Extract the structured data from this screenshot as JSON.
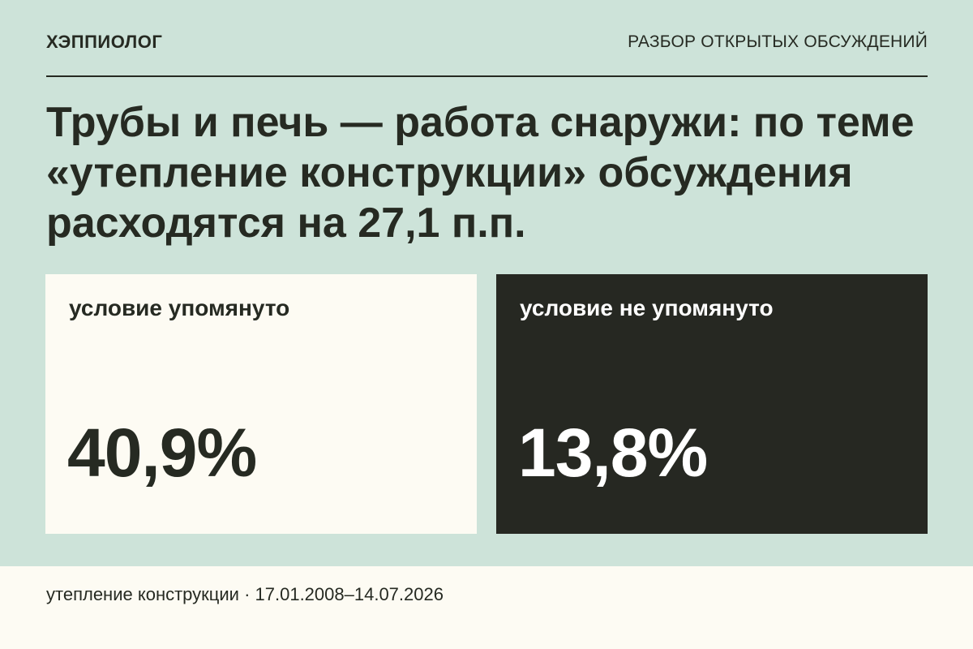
{
  "header": {
    "brand": "ХЭППИОЛОГ",
    "section": "РАЗБОР ОТКРЫТЫХ ОБСУЖДЕНИЙ"
  },
  "headline": "Трубы и печь — работа снаружи: по теме «утепление конструкции» обсуждения расходятся на 27,1 п.п.",
  "cards": [
    {
      "label": "условие упомянуто",
      "value": "40,9%"
    },
    {
      "label": "условие не упомянуто",
      "value": "13,8%"
    }
  ],
  "footer": {
    "text": "утепление конструкции · 17.01.2008–14.07.2026"
  },
  "colors": {
    "background": "#cde3d9",
    "light_card": "#fdfbf3",
    "dark_card": "#262822",
    "text_dark": "#262a22",
    "text_light": "#ffffff"
  }
}
